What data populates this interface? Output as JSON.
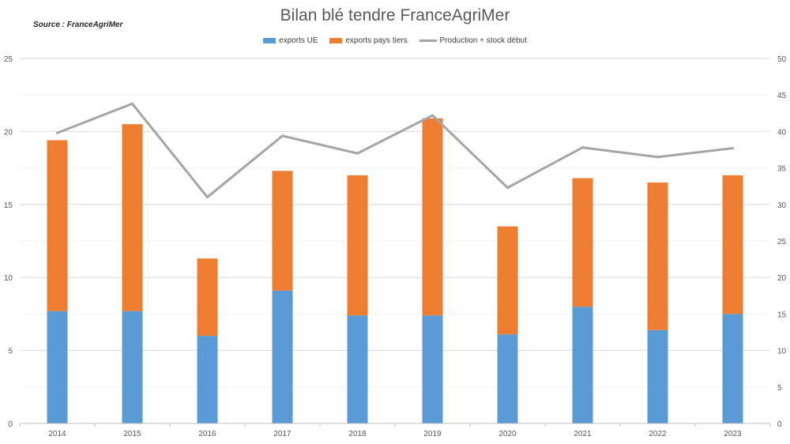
{
  "title": "Bilan blé tendre FranceAgriMer",
  "source": "Source : FranceAgriMer",
  "colors": {
    "exports_ue": "#5b9bd5",
    "exports_tiers": "#ed7d31",
    "production": "#a5a5a5"
  },
  "chart_data": {
    "type": "bar",
    "stacked": true,
    "categories": [
      "2014",
      "2015",
      "2016",
      "2017",
      "2018",
      "2019",
      "2020",
      "2021",
      "2022",
      "2023"
    ],
    "series": [
      {
        "name": "exports UE",
        "axis": "left",
        "values": [
          7.7,
          7.7,
          6.0,
          9.1,
          7.4,
          7.4,
          6.1,
          8.0,
          6.4,
          7.5
        ]
      },
      {
        "name": "exports pays tiers",
        "axis": "left",
        "values": [
          11.7,
          12.8,
          5.3,
          8.2,
          9.6,
          13.5,
          7.4,
          8.8,
          10.1,
          9.5
        ]
      },
      {
        "name": "Production + stock début",
        "axis": "right",
        "type": "line",
        "values": [
          39.8,
          43.8,
          31.0,
          39.4,
          37.0,
          42.2,
          32.3,
          37.8,
          36.5,
          37.7
        ]
      }
    ],
    "ylim_left": [
      0,
      25
    ],
    "yticks_left": [
      "0",
      "5",
      "10",
      "15",
      "20",
      "25"
    ],
    "ylim_right": [
      0,
      50
    ],
    "yticks_right": [
      "0",
      "5",
      "10",
      "15",
      "20",
      "25",
      "30",
      "35",
      "40",
      "45",
      "50"
    ],
    "grid": true,
    "legend_position": "top"
  }
}
